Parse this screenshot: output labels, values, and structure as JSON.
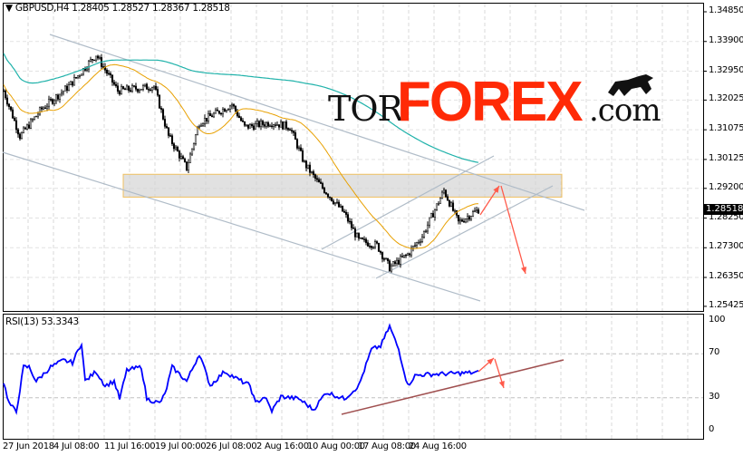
{
  "header": {
    "symbol_label": "GBPUSD,H4",
    "open": "1.28405",
    "high": "1.28527",
    "low": "1.28367",
    "close": "1.28518"
  },
  "current_price": "1.28518",
  "rsi_header": "RSI(13) 53.3343",
  "logo": {
    "tor": "TOR",
    "forex": "FOREX",
    "com": ".com"
  },
  "colors": {
    "candles": "#000000",
    "ma_fast": "#e8a000",
    "ma_slow": "#20b2aa",
    "rsi": "#0000ff",
    "arrows": "#ff5a4a",
    "rsi_trend": "#a05050",
    "channel": "#b0bcc8"
  },
  "chart_data": [
    {
      "type": "candlestick",
      "title": "GBPUSD,H4",
      "y_ticks": [
        "1.34850",
        "1.33900",
        "1.32950",
        "1.32025",
        "1.31075",
        "1.30125",
        "1.29200",
        "1.28250",
        "1.27300",
        "1.26350",
        "1.25425"
      ],
      "ylim": [
        1.25425,
        1.3485
      ],
      "x_ticks": [
        "27 Jun 2018",
        "4 Jul 08:00",
        "11 Jul 16:00",
        "19 Jul 00:00",
        "26 Jul 08:00",
        "2 Aug 16:00",
        "10 Aug 00:00",
        "17 Aug 08:00",
        "24 Aug 16:00"
      ],
      "close_keypoints_bar_price": [
        [
          0,
          1.3232
        ],
        [
          9,
          1.3087
        ],
        [
          21,
          1.3174
        ],
        [
          36,
          1.3247
        ],
        [
          51,
          1.3348
        ],
        [
          63,
          1.3232
        ],
        [
          83,
          1.3247
        ],
        [
          91,
          1.3087
        ],
        [
          101,
          1.2985
        ],
        [
          108,
          1.3131
        ],
        [
          126,
          1.3189
        ],
        [
          133,
          1.3116
        ],
        [
          148,
          1.3131
        ],
        [
          158,
          1.3116
        ],
        [
          166,
          1.3
        ],
        [
          173,
          1.2942
        ],
        [
          188,
          1.284
        ],
        [
          196,
          1.2753
        ],
        [
          206,
          1.2738
        ],
        [
          213,
          1.2666
        ],
        [
          223,
          1.2709
        ],
        [
          231,
          1.2767
        ],
        [
          243,
          1.2913
        ],
        [
          251,
          1.2811
        ],
        [
          262,
          1.2852
        ]
      ],
      "grid": true
    },
    {
      "type": "line",
      "title": "RSI(13) 53.3343",
      "y_ticks": [
        "100",
        "70",
        "30",
        "0"
      ],
      "ylim": [
        0,
        100
      ],
      "levels": [
        70,
        30
      ],
      "keypoints_bar_value": [
        [
          0,
          44
        ],
        [
          3,
          25
        ],
        [
          7,
          17
        ],
        [
          11,
          58
        ],
        [
          14,
          58
        ],
        [
          18,
          45
        ],
        [
          26,
          58
        ],
        [
          33,
          64
        ],
        [
          38,
          62
        ],
        [
          43,
          80
        ],
        [
          45,
          45
        ],
        [
          51,
          54
        ],
        [
          56,
          41
        ],
        [
          61,
          45
        ],
        [
          64,
          29
        ],
        [
          68,
          55
        ],
        [
          76,
          58
        ],
        [
          79,
          29
        ],
        [
          86,
          25
        ],
        [
          89,
          33
        ],
        [
          93,
          58
        ],
        [
          101,
          45
        ],
        [
          108,
          70
        ],
        [
          114,
          41
        ],
        [
          122,
          54
        ],
        [
          129,
          47
        ],
        [
          136,
          41
        ],
        [
          139,
          25
        ],
        [
          144,
          31
        ],
        [
          148,
          18
        ],
        [
          153,
          31
        ],
        [
          163,
          29
        ],
        [
          171,
          19
        ],
        [
          178,
          35
        ],
        [
          188,
          29
        ],
        [
          196,
          41
        ],
        [
          203,
          74
        ],
        [
          208,
          77
        ],
        [
          213,
          95
        ],
        [
          218,
          74
        ],
        [
          223,
          41
        ],
        [
          227,
          50
        ],
        [
          231,
          51
        ],
        [
          262,
          53
        ]
      ]
    }
  ]
}
